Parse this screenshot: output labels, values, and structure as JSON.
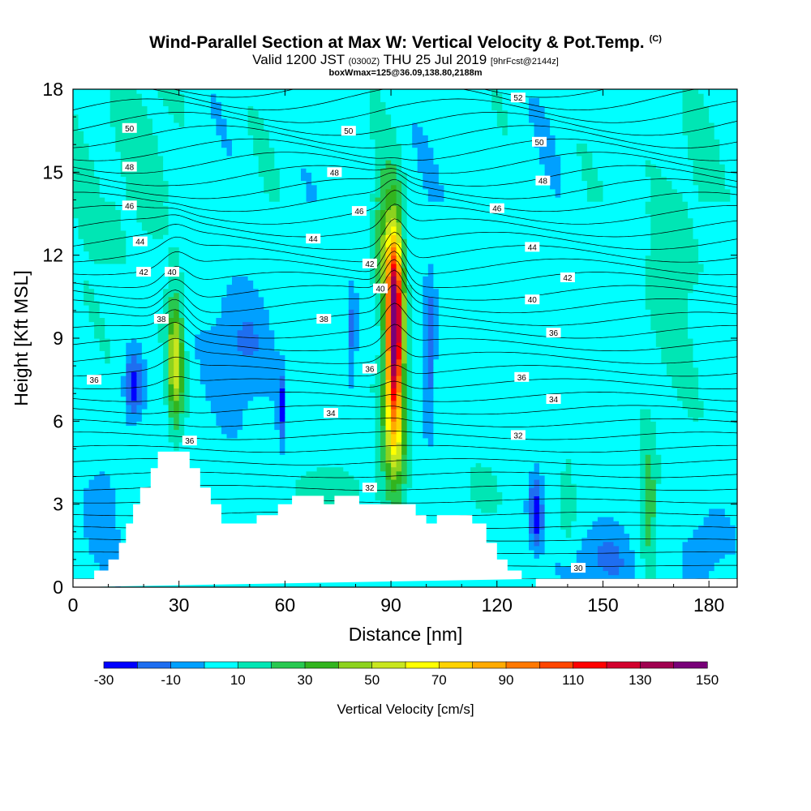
{
  "header": {
    "title": "Wind-Parallel Section at Max W: Vertical Velocity & Pot.Temp.",
    "copyright": "(C)",
    "valid_prefix": "Valid 1200 JST",
    "valid_utc": "(0300Z)",
    "valid_date": "THU 25 Jul 2019",
    "forecast": "[9hrFcst@2144z]",
    "box_info": "boxWmax=125@36.09,138.80,2188m"
  },
  "chart_data": {
    "type": "heatmap",
    "xlabel": "Distance [nm]",
    "ylabel": "Height [Kft MSL]",
    "xlim": [
      0,
      188
    ],
    "ylim": [
      0,
      18
    ],
    "x_ticks": [
      "0",
      "30",
      "60",
      "90",
      "120",
      "150",
      "180"
    ],
    "y_ticks": [
      "0",
      "3",
      "6",
      "9",
      "12",
      "15",
      "18"
    ],
    "x_tick_values": [
      0,
      30,
      60,
      90,
      120,
      150,
      180
    ],
    "y_tick_values": [
      0,
      3,
      6,
      9,
      12,
      15,
      18
    ],
    "colorbar": {
      "label": "Vertical Velocity [cm/s]",
      "levels": [
        -30,
        -20,
        -10,
        0,
        10,
        20,
        30,
        40,
        50,
        60,
        70,
        80,
        90,
        100,
        110,
        120,
        130,
        140,
        150
      ],
      "tick_labels": [
        "-30",
        "-10",
        "10",
        "30",
        "50",
        "70",
        "90",
        "110",
        "130",
        "150"
      ],
      "colors": [
        "#0000ff",
        "#1e6ef0",
        "#00a0ff",
        "#00ffff",
        "#00e6b4",
        "#28c850",
        "#32b41e",
        "#8cd21e",
        "#c8e61e",
        "#ffff00",
        "#ffd200",
        "#ffaa00",
        "#ff7800",
        "#ff4600",
        "#ff0000",
        "#d2002d",
        "#a00050",
        "#780078"
      ]
    },
    "terrain": [
      [
        0,
        0.3
      ],
      [
        6,
        0.3
      ],
      [
        6,
        0.6
      ],
      [
        10,
        0.6
      ],
      [
        10,
        1.0
      ],
      [
        13,
        1.0
      ],
      [
        13,
        1.6
      ],
      [
        15,
        1.6
      ],
      [
        15,
        2.3
      ],
      [
        17,
        2.3
      ],
      [
        17,
        3.0
      ],
      [
        19,
        3.0
      ],
      [
        19,
        3.6
      ],
      [
        22,
        3.6
      ],
      [
        22,
        4.3
      ],
      [
        24,
        4.3
      ],
      [
        24,
        4.9
      ],
      [
        33,
        4.9
      ],
      [
        33,
        4.3
      ],
      [
        36,
        4.3
      ],
      [
        36,
        3.6
      ],
      [
        39,
        3.6
      ],
      [
        39,
        3.0
      ],
      [
        42,
        3.0
      ],
      [
        42,
        2.3
      ],
      [
        52,
        2.3
      ],
      [
        52,
        2.6
      ],
      [
        58,
        2.6
      ],
      [
        58,
        3.0
      ],
      [
        62,
        3.0
      ],
      [
        62,
        3.3
      ],
      [
        71,
        3.3
      ],
      [
        71,
        3.0
      ],
      [
        74,
        3.0
      ],
      [
        74,
        3.3
      ],
      [
        81,
        3.3
      ],
      [
        81,
        3.0
      ],
      [
        97,
        3.0
      ],
      [
        97,
        2.6
      ],
      [
        100,
        2.6
      ],
      [
        100,
        2.3
      ],
      [
        103,
        2.3
      ],
      [
        103,
        2.6
      ],
      [
        113,
        2.6
      ],
      [
        113,
        2.3
      ],
      [
        117,
        2.3
      ],
      [
        117,
        1.6
      ],
      [
        120,
        1.6
      ],
      [
        120,
        1.0
      ],
      [
        123,
        1.0
      ],
      [
        123,
        0.6
      ],
      [
        127,
        0.6
      ],
      [
        127,
        0.3
      ],
      [
        131,
        0.3
      ],
      [
        131,
        0
      ]
    ],
    "theta_labels": [
      {
        "text": "52",
        "x": 126,
        "y": 17.7
      },
      {
        "text": "50",
        "x": 16,
        "y": 16.6
      },
      {
        "text": "50",
        "x": 78,
        "y": 16.5
      },
      {
        "text": "50",
        "x": 132,
        "y": 16.1
      },
      {
        "text": "48",
        "x": 16,
        "y": 15.2
      },
      {
        "text": "48",
        "x": 74,
        "y": 15.0
      },
      {
        "text": "48",
        "x": 133,
        "y": 14.7
      },
      {
        "text": "46",
        "x": 16,
        "y": 13.8
      },
      {
        "text": "46",
        "x": 81,
        "y": 13.6
      },
      {
        "text": "46",
        "x": 120,
        "y": 13.7
      },
      {
        "text": "44",
        "x": 19,
        "y": 12.5
      },
      {
        "text": "44",
        "x": 68,
        "y": 12.6
      },
      {
        "text": "44",
        "x": 130,
        "y": 12.3
      },
      {
        "text": "42",
        "x": 20,
        "y": 11.4
      },
      {
        "text": "42",
        "x": 84,
        "y": 11.7
      },
      {
        "text": "42",
        "x": 140,
        "y": 11.2
      },
      {
        "text": "40",
        "x": 28,
        "y": 11.4
      },
      {
        "text": "40",
        "x": 87,
        "y": 10.8
      },
      {
        "text": "40",
        "x": 130,
        "y": 10.4
      },
      {
        "text": "38",
        "x": 25,
        "y": 9.7
      },
      {
        "text": "38",
        "x": 71,
        "y": 9.7
      },
      {
        "text": "36",
        "x": 6,
        "y": 7.5
      },
      {
        "text": "36",
        "x": 84,
        "y": 7.9
      },
      {
        "text": "36",
        "x": 127,
        "y": 7.6
      },
      {
        "text": "36",
        "x": 136,
        "y": 9.2
      },
      {
        "text": "34",
        "x": 73,
        "y": 6.3
      },
      {
        "text": "34",
        "x": 136,
        "y": 6.8
      },
      {
        "text": "32",
        "x": 126,
        "y": 5.5
      },
      {
        "text": "32",
        "x": 84,
        "y": 3.6
      },
      {
        "text": "36",
        "x": 33,
        "y": 5.3
      },
      {
        "text": "30",
        "x": 143,
        "y": 0.7
      }
    ]
  }
}
